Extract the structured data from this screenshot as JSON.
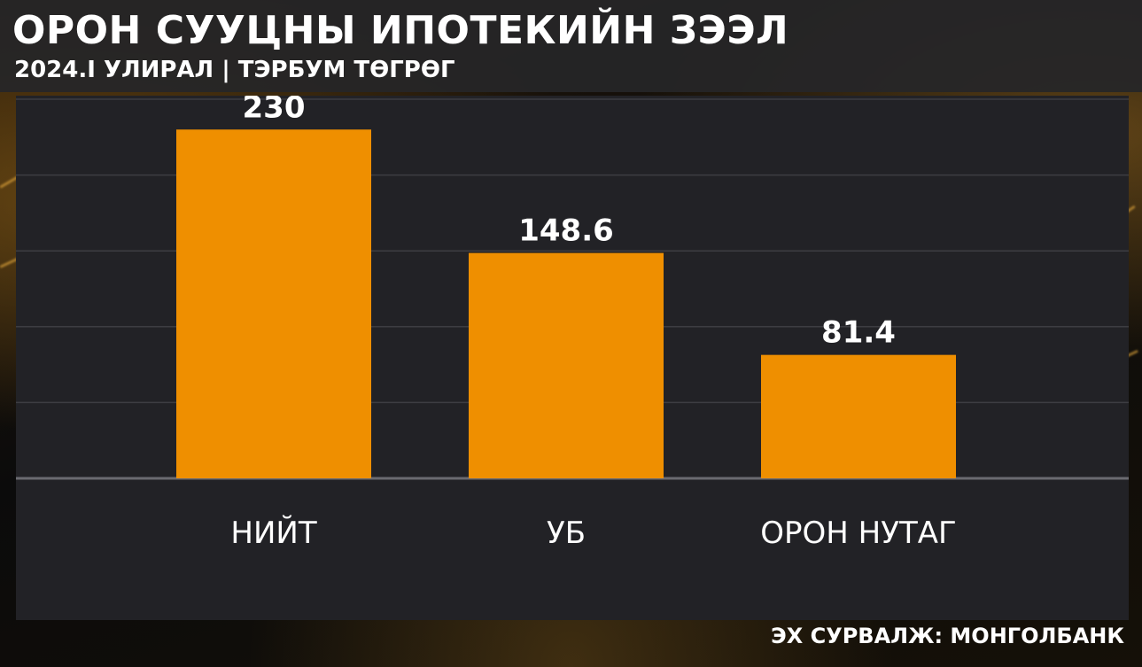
{
  "header": {
    "title": "ОРОН СУУЦНЫ ИПОТЕКИЙН ЗЭЭЛ",
    "subtitle": "2024.I УЛИРАЛ | ТЭРБУМ ТӨГРӨГ"
  },
  "footer": {
    "source": "ЭХ СУРВАЛЖ: МОНГОЛБАНК"
  },
  "colors": {
    "bar": "#ef8f00",
    "panel": "#222226",
    "gridline": "#3d3d42",
    "baseline": "#6a6a70",
    "label": "#ffffff"
  },
  "chart_data": {
    "type": "bar",
    "title": "ОРОН СУУЦНЫ ИПОТЕКИЙН ЗЭЭЛ",
    "subtitle": "2024.I УЛИРАЛ | ТЭРБУМ ТӨГРӨГ",
    "categories": [
      "НИЙТ",
      "УБ",
      "ОРОН НУТАГ"
    ],
    "values": [
      230,
      148.6,
      81.4
    ],
    "value_labels": [
      "230",
      "148.6",
      "81.4"
    ],
    "xlabel": "",
    "ylabel": "",
    "ylim": [
      0,
      250
    ],
    "grid": true,
    "legend": "none"
  }
}
